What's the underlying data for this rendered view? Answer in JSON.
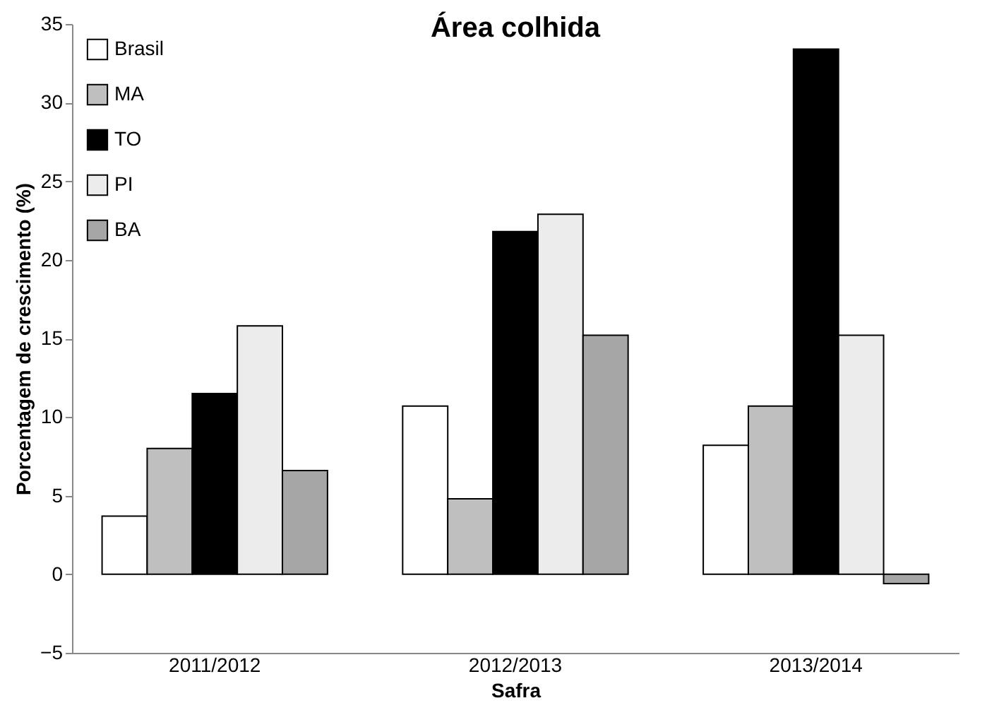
{
  "chart_data": {
    "type": "bar",
    "title": "Área colhida",
    "xlabel": "Safra",
    "ylabel": "Porcentagem de crescimento (%)",
    "categories": [
      "2011/2012",
      "2012/2013",
      "2013/2014"
    ],
    "series": [
      {
        "name": "Brasil",
        "color": "#ffffff",
        "values": [
          3.7,
          10.7,
          8.2
        ]
      },
      {
        "name": "MA",
        "color": "#bfbfbf",
        "values": [
          8.0,
          4.8,
          10.7
        ]
      },
      {
        "name": "TO",
        "color": "#000000",
        "values": [
          11.5,
          21.8,
          33.4
        ]
      },
      {
        "name": "PI",
        "color": "#ececec",
        "values": [
          15.8,
          22.9,
          15.2
        ]
      },
      {
        "name": "BA",
        "color": "#a6a6a6",
        "values": [
          6.6,
          15.2,
          -0.6
        ]
      }
    ],
    "ylim": [
      -5,
      35
    ],
    "yticks": [
      -5,
      0,
      5,
      10,
      15,
      20,
      25,
      30,
      35
    ],
    "grid": false,
    "legend": "top left"
  }
}
